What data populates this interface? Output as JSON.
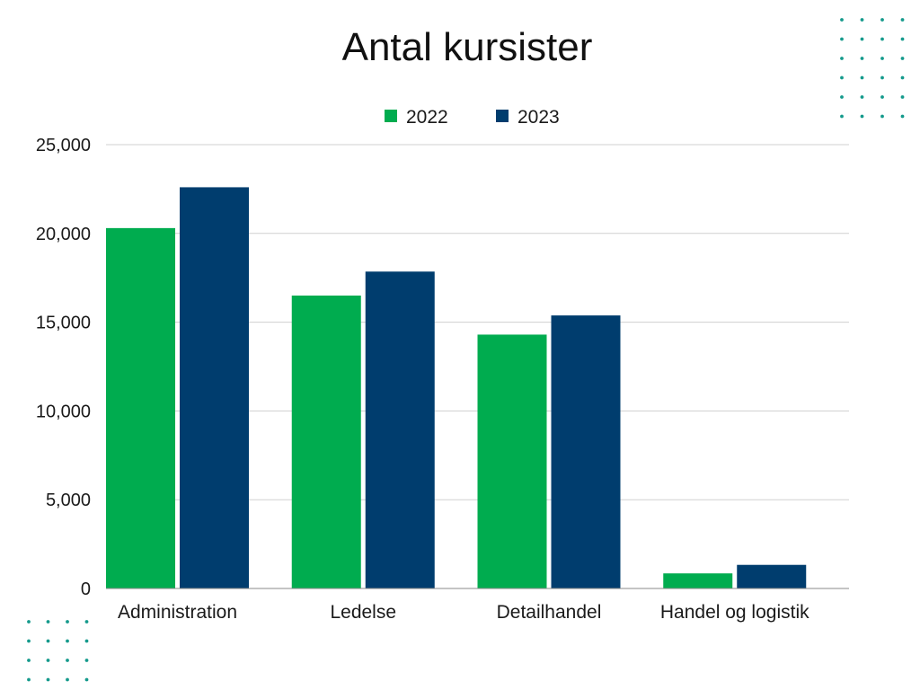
{
  "colors": {
    "series_2022": "#00ac4f",
    "series_2023": "#003d6e",
    "dots": "#159a8c",
    "grid": "#d0d0d0",
    "axis": "#8a8a8a"
  },
  "chart_data": {
    "type": "bar",
    "title": "Antal kursister",
    "categories": [
      "Administration",
      "Ledelse",
      "Detailhandel",
      "Handel og logistik"
    ],
    "series": [
      {
        "name": "2022",
        "values": [
          20300,
          16500,
          14300,
          850
        ]
      },
      {
        "name": "2023",
        "values": [
          22600,
          17850,
          15380,
          1330
        ]
      }
    ],
    "ylim": [
      0,
      25000
    ],
    "yticks": [
      0,
      5000,
      10000,
      15000,
      20000,
      25000
    ],
    "ytick_labels": [
      "0",
      "5,000",
      "10,000",
      "15,000",
      "20,000",
      "25,000"
    ],
    "grid": true,
    "legend_position": "top-center"
  }
}
